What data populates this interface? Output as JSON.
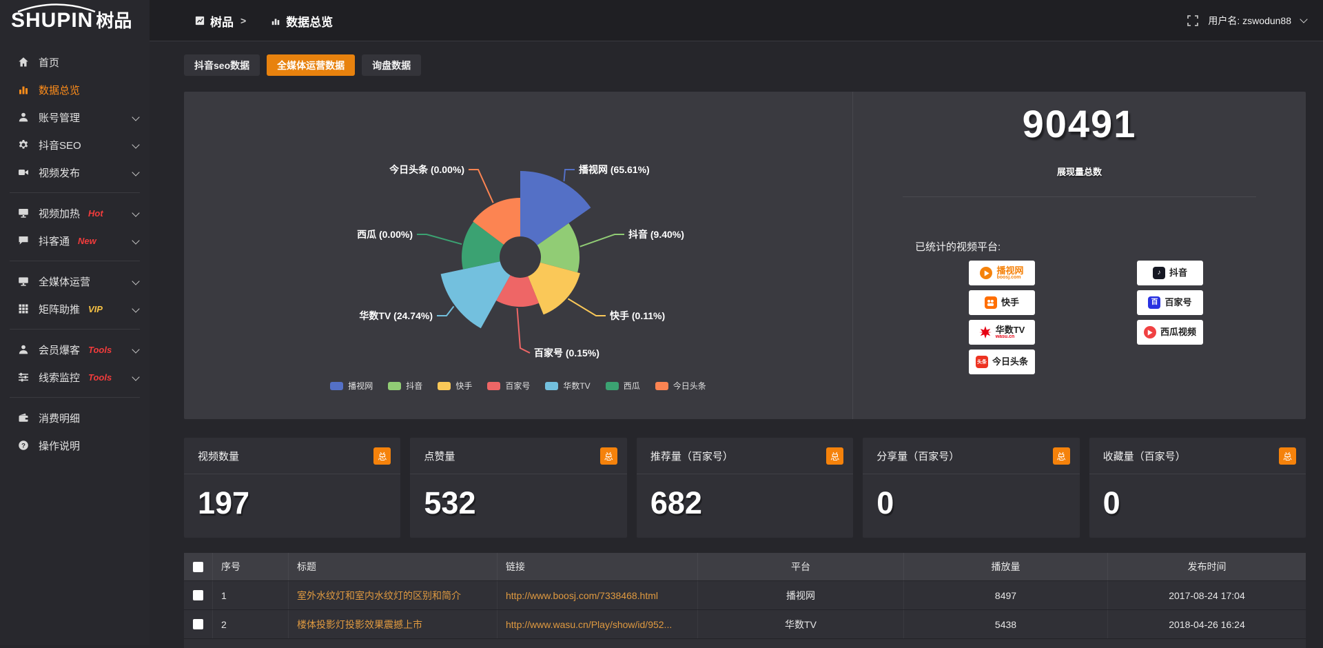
{
  "brand": {
    "logo_main": "SHUPIN",
    "logo_suffix": "树品"
  },
  "topbar": {
    "breadcrumb_root": "树品",
    "breadcrumb_sep": ">",
    "breadcrumb_current": "数据总览",
    "username": "用户名: zswodun88"
  },
  "tabs": [
    {
      "label": "抖音seo数据",
      "active": false
    },
    {
      "label": "全媒体运营数据",
      "active": true
    },
    {
      "label": "询盘数据",
      "active": false
    }
  ],
  "sidebar": {
    "items": [
      {
        "label": "首页",
        "icon": "home",
        "active": false
      },
      {
        "label": "数据总览",
        "icon": "chart",
        "active": true
      },
      {
        "label": "账号管理",
        "icon": "user",
        "chevron": true
      },
      {
        "label": "抖音SEO",
        "icon": "gear",
        "chevron": true
      },
      {
        "label": "视频发布",
        "icon": "video",
        "chevron": true,
        "group_end": true
      },
      {
        "label": "视频加热",
        "icon": "display",
        "badge": "Hot",
        "badge_color": "#f23c3c",
        "chevron": true
      },
      {
        "label": "抖客通",
        "icon": "chat",
        "badge": "New",
        "badge_color": "#f23c3c",
        "chevron": true,
        "group_end": true
      },
      {
        "label": "全媒体运营",
        "icon": "monitor",
        "chevron": true
      },
      {
        "label": "矩阵助推",
        "icon": "grid",
        "badge": "VIP",
        "badge_color": "#f7c244",
        "chevron": true,
        "group_end": true
      },
      {
        "label": "会员爆客",
        "icon": "member",
        "badge": "Tools",
        "badge_color": "#f23c3c",
        "chevron": true
      },
      {
        "label": "线索监控",
        "icon": "sliders",
        "badge": "Tools",
        "badge_color": "#f23c3c",
        "chevron": true,
        "group_end": true
      },
      {
        "label": "消费明细",
        "icon": "wallet"
      },
      {
        "label": "操作说明",
        "icon": "help"
      }
    ]
  },
  "chart_data": {
    "type": "pie",
    "subtype": "rose",
    "categories": [
      "播视网",
      "抖音",
      "快手",
      "百家号",
      "华数TV",
      "西瓜",
      "今日头条"
    ],
    "values_percent": [
      65.61,
      9.4,
      0.11,
      0.15,
      24.74,
      0.0,
      0.0
    ],
    "colors": [
      "#5470c6",
      "#91cc75",
      "#fac858",
      "#ee6666",
      "#73c0de",
      "#3ba272",
      "#fc8452"
    ],
    "callout_labels": [
      "播视网 (65.61%)",
      "抖音 (9.40%)",
      "快手 (0.11%)",
      "百家号 (0.15%)",
      "华数TV (24.74%)",
      "西瓜 (0.00%)",
      "今日头条 (0.00%)"
    ],
    "legend": [
      "播视网",
      "抖音",
      "快手",
      "百家号",
      "华数TV",
      "西瓜",
      "今日头条"
    ],
    "legend_position": "bottom",
    "title": "展现量总数",
    "total": 90491
  },
  "overview": {
    "total_value": "90491",
    "total_label": "展现量总数",
    "platforms_title": "已统计的视频平台:",
    "platforms": [
      {
        "name": "播视网",
        "sub": "boosj.com",
        "accent": "#f5820b",
        "style": "boosj",
        "col": 0,
        "row": 0
      },
      {
        "name": "抖音",
        "accent": "#161823",
        "style": "douyin",
        "col": 1,
        "row": 0
      },
      {
        "name": "快手",
        "accent": "#ff6e00",
        "style": "kuaishou",
        "col": 0,
        "row": 1
      },
      {
        "name": "百家号",
        "accent": "#2932e1",
        "style": "baijia",
        "col": 1,
        "row": 1
      },
      {
        "name": "华数TV",
        "sub": "wasu.cn",
        "accent": "#e60012",
        "style": "wasu",
        "col": 0,
        "row": 2
      },
      {
        "name": "西瓜视频",
        "accent": "#f04142",
        "style": "xigua",
        "col": 1,
        "row": 2
      },
      {
        "name": "今日头条",
        "accent": "#ed3321",
        "style": "toutiao",
        "col": 0,
        "row": 3
      }
    ]
  },
  "stat_cards": [
    {
      "label": "视频数量",
      "badge": "总",
      "value": "197"
    },
    {
      "label": "点赞量",
      "badge": "总",
      "value": "532"
    },
    {
      "label": "推荐量（百家号）",
      "badge": "总",
      "value": "682"
    },
    {
      "label": "分享量（百家号）",
      "badge": "总",
      "value": "0"
    },
    {
      "label": "收藏量（百家号）",
      "badge": "总",
      "value": "0"
    }
  ],
  "table": {
    "headers": [
      "序号",
      "标题",
      "链接",
      "平台",
      "播放量",
      "发布时间"
    ],
    "rows": [
      {
        "seq": "1",
        "title": "室外水纹灯和室内水纹灯的区别和简介",
        "link": "http://www.boosj.com/7338468.html",
        "platform": "播视网",
        "plays": "8497",
        "time": "2017-08-24 17:04"
      },
      {
        "seq": "2",
        "title": "楼体投影灯投影效果震撼上市",
        "link": "http://www.wasu.cn/Play/show/id/952...",
        "platform": "华数TV",
        "plays": "5438",
        "time": "2018-04-26 16:24"
      }
    ]
  }
}
